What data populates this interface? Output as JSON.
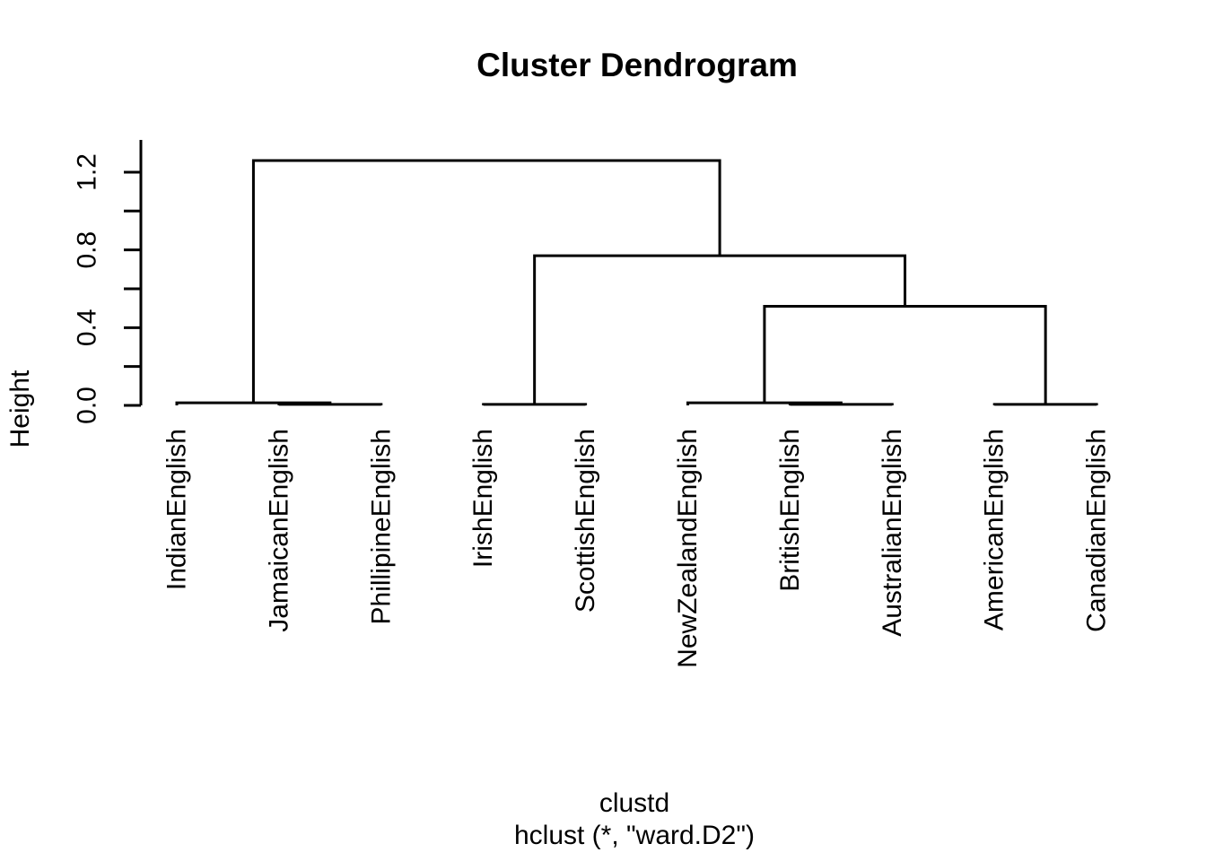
{
  "chart_data": {
    "type": "dendrogram",
    "title": "Cluster Dendrogram",
    "ylabel": "Height",
    "xlabel": "clustd",
    "call": "hclust (*, \"ward.D2\")",
    "ylim": [
      0,
      1.37
    ],
    "yticks": [
      0,
      0.2,
      0.4,
      0.6,
      0.8,
      1.0,
      1.2
    ],
    "ytick_labels": [
      "0.0",
      "0.4",
      "0.8",
      "1.2"
    ],
    "leaves": [
      "IndianEnglish",
      "JamaicanEnglish",
      "PhillipineEnglish",
      "IrishEnglish",
      "ScottishEnglish",
      "NewZealandEnglish",
      "BritishEnglish",
      "AustralianEnglish",
      "AmericanEnglish",
      "CanadianEnglish"
    ],
    "merges": [
      {
        "id": "M0",
        "children": [
          "L1",
          "L2"
        ],
        "height": 0.005
      },
      {
        "id": "M1",
        "children": [
          "L0",
          "M0"
        ],
        "height": 0.013
      },
      {
        "id": "M2",
        "children": [
          "L3",
          "L4"
        ],
        "height": 0.005
      },
      {
        "id": "M3",
        "children": [
          "L6",
          "L7"
        ],
        "height": 0.005
      },
      {
        "id": "M4",
        "children": [
          "L5",
          "M3"
        ],
        "height": 0.013
      },
      {
        "id": "M5",
        "children": [
          "L8",
          "L9"
        ],
        "height": 0.005
      },
      {
        "id": "M6",
        "children": [
          "M4",
          "M5"
        ],
        "height": 0.51
      },
      {
        "id": "M7",
        "children": [
          "M2",
          "M6"
        ],
        "height": 0.77
      },
      {
        "id": "M8",
        "children": [
          "M1",
          "M7"
        ],
        "height": 1.26
      }
    ],
    "colors": {
      "line": "#000000",
      "text": "#000000",
      "background": "#ffffff"
    }
  }
}
